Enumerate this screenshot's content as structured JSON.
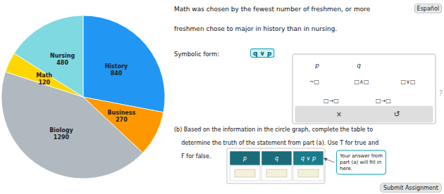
{
  "chart_data": {
    "type": "pie",
    "categories": [
      "History",
      "Business",
      "Biology",
      "Math",
      "Nursing"
    ],
    "values": [
      840,
      270,
      1290,
      120,
      480
    ],
    "colors": [
      "#2196F3",
      "#FF9800",
      "#B0B8C0",
      "#FFD700",
      "#7FD9E0"
    ],
    "data_labels": true,
    "annotations": [
      "Español",
      "Math was chosen by the fewest number of freshmen, or more",
      "freshmen chose to major in history than in nursing.",
      "Symbolic form:",
      "q ∨ p",
      "p",
      "q",
      "~□",
      "□∧□",
      "□∨□",
      "□→□",
      "□→□",
      "×",
      "↺",
      "?",
      "(b) Based on the information in the circle graph, complete the table to",
      "    determine the truth of the statement from part (a). Use T for true and",
      "    F for false.",
      "p",
      "q",
      "q ∨ p",
      "Your answer from\npart (a) will fill in\nhere.",
      "Submit Assignment"
    ]
  }
}
